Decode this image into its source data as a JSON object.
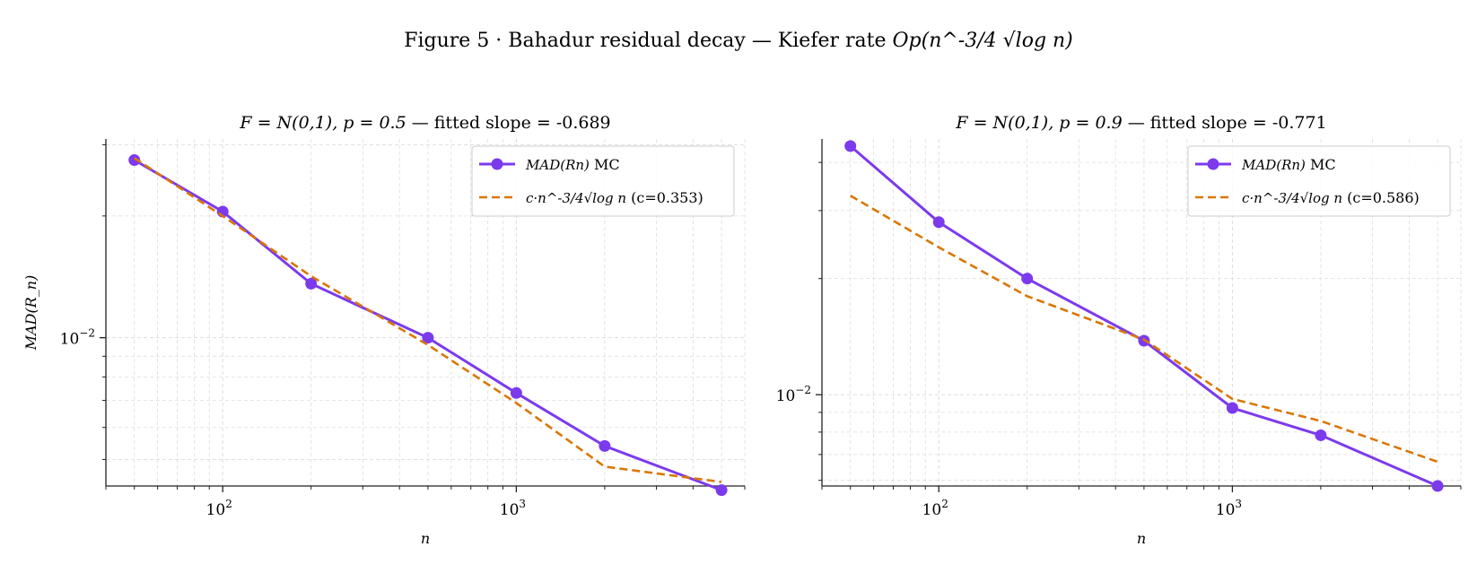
{
  "figure": {
    "suptitle_text": "Figure 5 · Bahadur residual decay — Kiefer rate ",
    "suptitle_math": "Op(n^-3/4 √log n)"
  },
  "colors": {
    "mc": "#7c3aed",
    "fit": "#d97706",
    "grid": "#dddddd",
    "axis": "#222222"
  },
  "chart_data": [
    {
      "type": "line",
      "title_math": "F = N(0,1), p = 0.5",
      "title_text": "— fitted slope = -0.689",
      "xlabel": "n",
      "ylabel": "MAD(R_n)",
      "xscale": "log",
      "yscale": "log",
      "xlim": [
        40,
        6000
      ],
      "ylim": [
        0.0043,
        0.031
      ],
      "xticks": [
        {
          "value": 100,
          "base": "10",
          "exp": "2"
        },
        {
          "value": 1000,
          "base": "10",
          "exp": "3"
        }
      ],
      "yticks": [
        {
          "value": 0.01,
          "base": "10",
          "exp": "−2"
        }
      ],
      "grid": true,
      "legend_position": "upper right",
      "series": [
        {
          "name": "MAD(R_n) MC",
          "style": "solid-markers",
          "x": [
            50,
            100,
            200,
            500,
            1000,
            2000,
            5000
          ],
          "y": [
            0.0275,
            0.0205,
            0.0136,
            0.01,
            0.0073,
            0.0054,
            0.0042
          ]
        },
        {
          "name": "c·n^-3/4 √log n (c=0.353)",
          "style": "dashed",
          "x": [
            50,
            100,
            200,
            500,
            1000,
            2000,
            5000
          ],
          "y": [
            0.0278,
            0.02,
            0.0142,
            0.0096,
            0.0069,
            0.0048,
            0.0044
          ]
        }
      ],
      "legend": [
        {
          "label_math": "MAD(Rn)",
          "label_text": " MC"
        },
        {
          "label_math": "c·n^-3/4√log n",
          "label_text": " (c=0.353)"
        }
      ]
    },
    {
      "type": "line",
      "title_math": "F = N(0,1), p = 0.9",
      "title_text": "— fitted slope = -0.771",
      "xlabel": "n",
      "ylabel": "",
      "xscale": "log",
      "yscale": "log",
      "xlim": [
        40,
        6000
      ],
      "ylim": [
        0.0058,
        0.046
      ],
      "xticks": [
        {
          "value": 100,
          "base": "10",
          "exp": "2"
        },
        {
          "value": 1000,
          "base": "10",
          "exp": "3"
        }
      ],
      "yticks": [
        {
          "value": 0.01,
          "base": "10",
          "exp": "−2"
        }
      ],
      "grid": true,
      "legend_position": "upper right",
      "series": [
        {
          "name": "MAD(R_n) MC",
          "style": "solid-markers",
          "x": [
            50,
            100,
            200,
            500,
            1000,
            2000,
            5000
          ],
          "y": [
            0.0441,
            0.028,
            0.02,
            0.0138,
            0.00924,
            0.00785,
            0.0058
          ]
        },
        {
          "name": "c·n^-3/4 √log n (c=0.586)",
          "style": "dashed",
          "x": [
            50,
            100,
            200,
            500,
            1000,
            2000,
            5000
          ],
          "y": [
            0.0328,
            0.0241,
            0.018,
            0.0139,
            0.00975,
            0.00855,
            0.0067
          ]
        }
      ],
      "legend": [
        {
          "label_math": "MAD(Rn)",
          "label_text": " MC"
        },
        {
          "label_math": "c·n^-3/4√log n",
          "label_text": " (c=0.586)"
        }
      ]
    }
  ]
}
